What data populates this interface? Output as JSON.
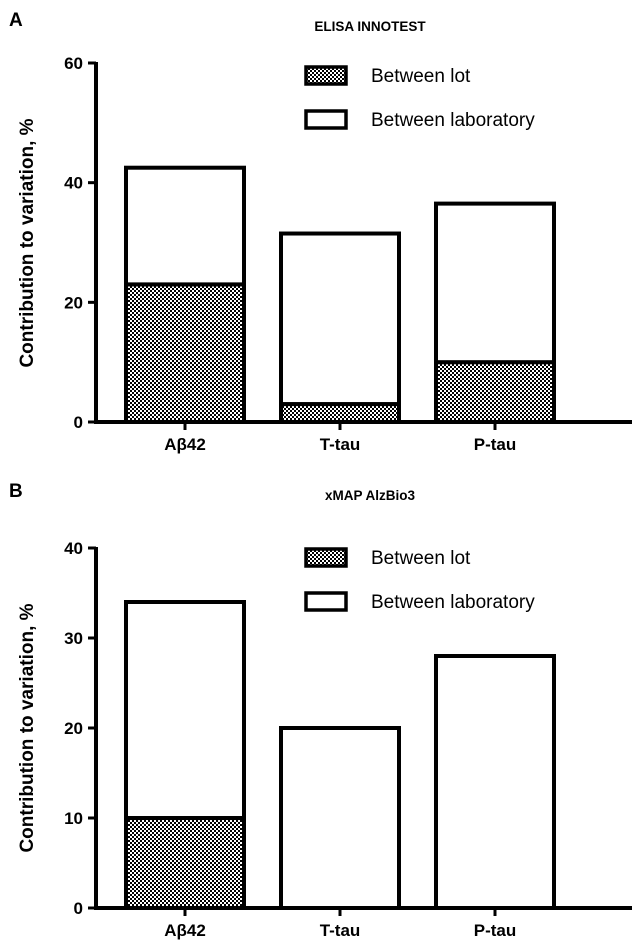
{
  "chart_data": [
    {
      "panel": "A",
      "type": "bar",
      "stacked": true,
      "title": "ELISA INNOTEST",
      "ylabel": "Contribution to variation, %",
      "xlabel": "",
      "categories": [
        "Aβ42",
        "T-tau",
        "P-tau"
      ],
      "ylim": [
        0,
        60
      ],
      "yticks": [
        0,
        20,
        40,
        60
      ],
      "series": [
        {
          "name": "Between lot",
          "pattern": "checkerboard",
          "values": [
            23,
            3,
            10
          ]
        },
        {
          "name": "Between laboratory",
          "pattern": "white",
          "values": [
            19.5,
            28.5,
            26.5
          ]
        }
      ],
      "legend_position": "top-right",
      "grid": false
    },
    {
      "panel": "B",
      "type": "bar",
      "stacked": true,
      "title": "xMAP AlzBio3",
      "ylabel": "Contribution to variation, %",
      "xlabel": "",
      "categories": [
        "Aβ42",
        "T-tau",
        "P-tau"
      ],
      "ylim": [
        0,
        40
      ],
      "yticks": [
        0,
        10,
        20,
        30,
        40
      ],
      "series": [
        {
          "name": "Between lot",
          "pattern": "checkerboard",
          "values": [
            10,
            0,
            0
          ]
        },
        {
          "name": "Between laboratory",
          "pattern": "white",
          "values": [
            24,
            20,
            28
          ]
        }
      ],
      "legend_position": "top-right",
      "grid": false
    }
  ],
  "colors": {
    "ink": "#000000",
    "checker_dark": "#000000",
    "checker_light": "#ffffff"
  }
}
